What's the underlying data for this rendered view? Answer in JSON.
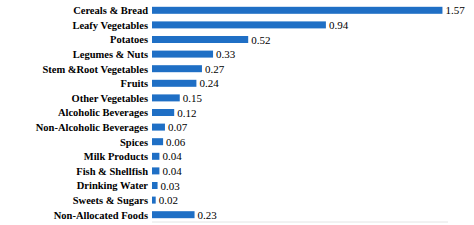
{
  "chart_data": {
    "type": "bar",
    "orientation": "horizontal",
    "categories": [
      "Cereals & Bread",
      "Leafy Vegetables",
      "Potatoes",
      "Legumes & Nuts",
      "Stem &Root Vegetables",
      "Fruits",
      "Other Vegetables",
      "Alcoholic Beverages",
      "Non-Alcoholic Beverages",
      "Spices",
      "Milk Products",
      "Fish & Shellfish",
      "Drinking Water",
      "Sweets & Sugars",
      "Non-Allocated Foods"
    ],
    "values": [
      1.57,
      0.94,
      0.52,
      0.33,
      0.27,
      0.24,
      0.15,
      0.12,
      0.07,
      0.06,
      0.04,
      0.04,
      0.03,
      0.02,
      0.23
    ],
    "color": "#1f6fc5",
    "xlim": [
      0,
      1.6
    ],
    "data_labels": true,
    "grid": false,
    "tick_labels": "y"
  }
}
